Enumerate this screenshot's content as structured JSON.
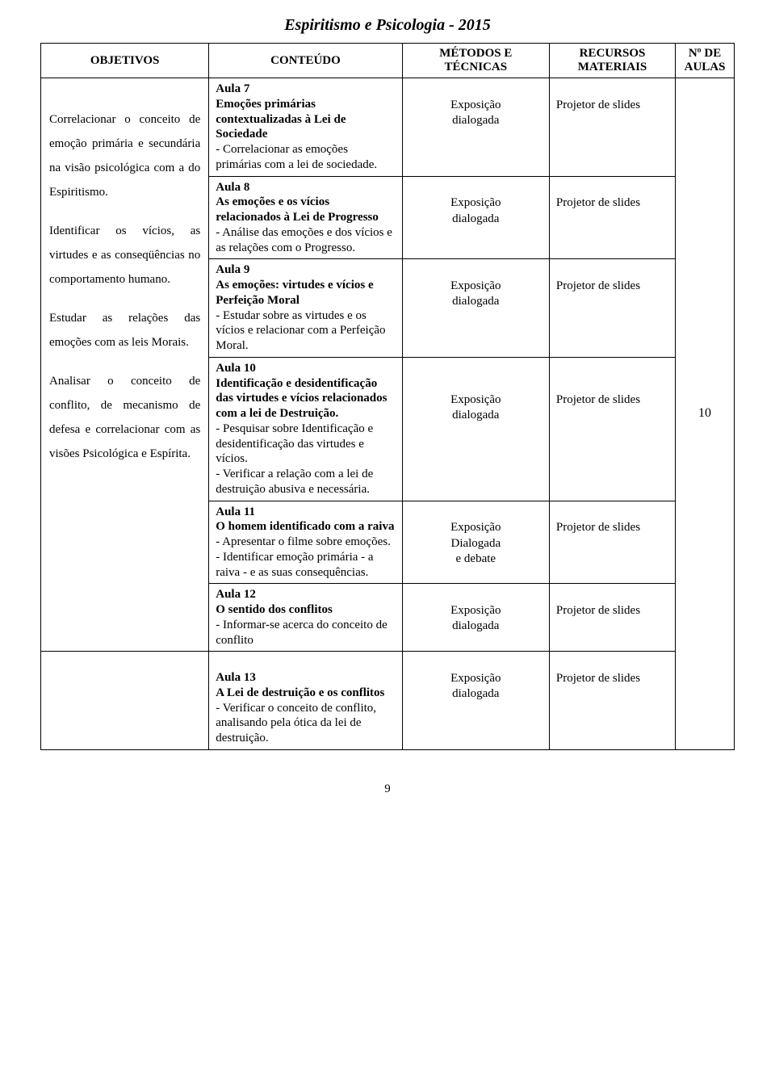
{
  "page": {
    "title": "Espiritismo e Psicologia - 2015",
    "page_number": "9"
  },
  "headers": {
    "objetivos": "OBJETIVOS",
    "conteudo": "CONTEÚDO",
    "metodos": "MÉTODOS E TÉCNICAS",
    "recursos_l1": "RECURSOS",
    "recursos_l2": "MATERIAIS",
    "aulas_l1": "Nº DE",
    "aulas_l2": "AULAS"
  },
  "objetivos": {
    "p1": "Correlacionar o conceito de emoção primária e secundária na visão psicológica com a do Espiritismo.",
    "p2": "Identificar os vícios, as virtudes e as conseqüências no comportamento humano.",
    "p3": "Estudar as relações das emoções com as leis Morais.",
    "p4": "Analisar o conceito de conflito, de mecanismo de defesa e correlacionar com as visões Psicológica e Espírita."
  },
  "aula7": {
    "l1": "Aula 7",
    "l2": "Emoções primárias contextualizadas à Lei de Sociedade",
    "l3": "- Correlacionar as emoções primárias com a lei de sociedade.",
    "met_l1": "Exposição",
    "met_l2": "dialogada",
    "rec": "Projetor de slides"
  },
  "aula8": {
    "l1": "Aula 8",
    "l2": "As emoções e os vícios relacionados à Lei de Progresso",
    "l3": "- Análise das emoções e dos vícios e as relações com o Progresso.",
    "met_l1": "Exposição",
    "met_l2": "dialogada",
    "rec": "Projetor de slides"
  },
  "aula9": {
    "l1": "Aula 9",
    "l2": "As emoções: virtudes e vícios e Perfeição Moral",
    "l3": "- Estudar sobre as virtudes e os vícios e relacionar com a Perfeição Moral.",
    "met_l1": "Exposição",
    "met_l2": "dialogada",
    "rec": "Projetor de slides"
  },
  "aula10": {
    "l1": "Aula 10",
    "l2": "Identificação e desidentificação das virtudes e vícios relacionados com a lei de Destruição.",
    "l3": "- Pesquisar sobre Identificação e desidentificação das virtudes e vícios.",
    "l4": "- Verificar a relação com a lei de destruição abusiva e necessária.",
    "met_l1": "Exposição",
    "met_l2": "dialogada",
    "rec": "Projetor de slides"
  },
  "aula11": {
    "l1": "Aula 11",
    "l2": "O homem identificado com a raiva",
    "l3": "- Apresentar o filme sobre emoções.",
    "l4": "- Identificar emoção primária - a raiva - e as suas consequências.",
    "met_l1": "Exposição",
    "met_l2": "Dialogada",
    "met_l3": "e debate",
    "rec": "Projetor de slides"
  },
  "aula12": {
    "l1": "Aula 12",
    "l2": "O sentido dos conflitos",
    "l3": "- Informar-se acerca do conceito de conflito",
    "met_l1": "Exposição",
    "met_l2": "dialogada",
    "rec": "Projetor de slides"
  },
  "aula13": {
    "l1": "Aula 13",
    "l2": "A Lei de destruição e os conflitos",
    "l3": "- Verificar o conceito de conflito, analisando pela ótica da lei de destruição.",
    "met_l1": "Exposição",
    "met_l2": "dialogada",
    "rec": "Projetor de slides"
  },
  "aulas_count": "10",
  "colors": {
    "background": "#ffffff",
    "text": "#000000",
    "border": "#000000"
  },
  "typography": {
    "font_family": "Times New Roman",
    "title_fontsize": 20,
    "body_fontsize": 15
  }
}
